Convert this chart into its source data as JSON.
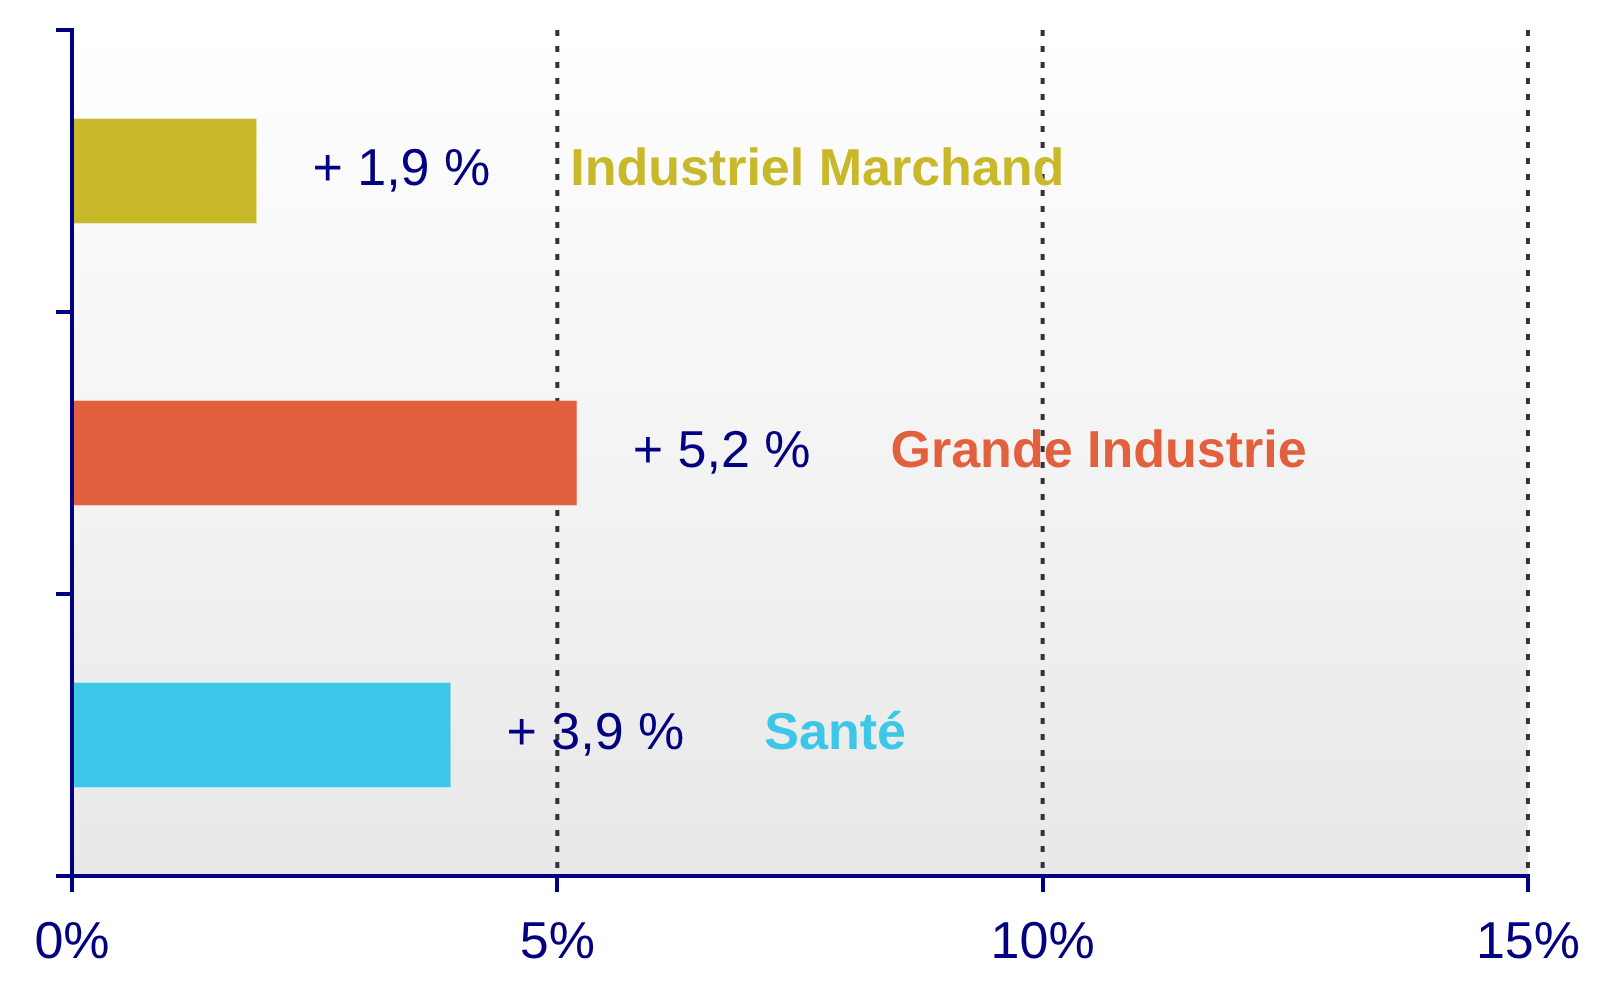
{
  "chart_data": {
    "type": "bar",
    "orientation": "horizontal",
    "categories": [
      "Industriel Marchand",
      "Grande Industrie",
      "Santé"
    ],
    "values": [
      1.9,
      5.2,
      3.9
    ],
    "colors": [
      "#c9b82a",
      "#e2603e",
      "#3cc6e8"
    ],
    "value_labels": [
      "+ 1,9 %",
      "+ 5,2 %",
      "+ 3,9 %"
    ],
    "xlim": [
      0,
      15
    ],
    "xticks": [
      {
        "value": 0,
        "label": "0%"
      },
      {
        "value": 5,
        "label": "5%"
      },
      {
        "value": 10,
        "label": "10%"
      },
      {
        "value": 15,
        "label": "15%"
      }
    ],
    "grid": "x",
    "line_style": "dotted",
    "tick_labels": "x"
  }
}
